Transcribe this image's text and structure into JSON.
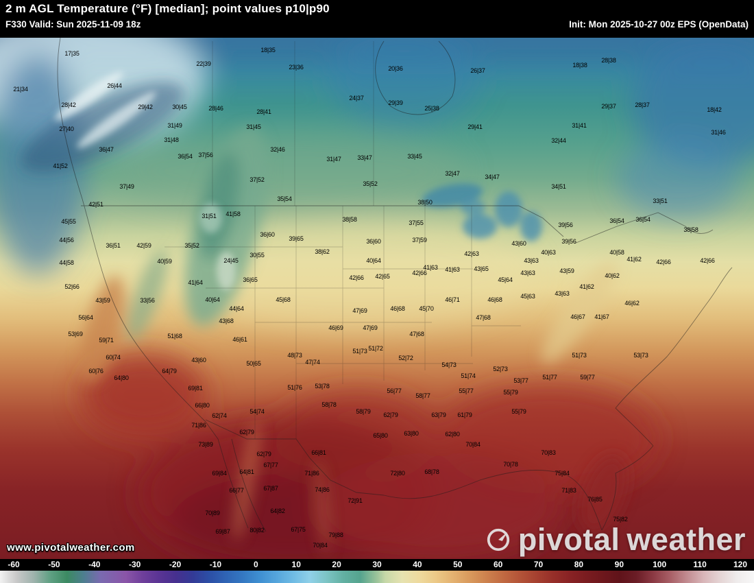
{
  "header": {
    "title": "2 m AGL Temperature (°F) [median]; point values p10|p90",
    "valid": "F330 Valid: Sun 2025-11-09 18z",
    "init": "Init: Mon 2025-10-27 00z EPS (OpenData)"
  },
  "watermark": "www.pivotalweather.com",
  "brand": {
    "name_left": "pivotal",
    "name_right": "weather"
  },
  "colorbar": {
    "min": -60,
    "max": 120,
    "ticks": [
      -60,
      -50,
      -40,
      -30,
      -20,
      -10,
      0,
      10,
      20,
      30,
      40,
      50,
      60,
      70,
      80,
      90,
      100,
      110,
      120
    ],
    "stops": [
      [
        -60,
        "#f2f2f2"
      ],
      [
        -56,
        "#c8c8c8"
      ],
      [
        -52,
        "#9fb3ad"
      ],
      [
        -48,
        "#5fa083"
      ],
      [
        -44,
        "#3c8a62"
      ],
      [
        -40,
        "#4d7e8f"
      ],
      [
        -36,
        "#7a6ab0"
      ],
      [
        -30,
        "#8a55a8"
      ],
      [
        -26,
        "#6f3f9b"
      ],
      [
        -22,
        "#5a3494"
      ],
      [
        -18,
        "#46308f"
      ],
      [
        -14,
        "#333a96"
      ],
      [
        -10,
        "#2c4fa6"
      ],
      [
        -6,
        "#2f64b5"
      ],
      [
        -2,
        "#3478c2"
      ],
      [
        2,
        "#3f8fd1"
      ],
      [
        6,
        "#55a5dc"
      ],
      [
        10,
        "#6fbbe4"
      ],
      [
        14,
        "#8fd0e8"
      ],
      [
        18,
        "#7cc4c4"
      ],
      [
        22,
        "#62b0a2"
      ],
      [
        26,
        "#55a48e"
      ],
      [
        30,
        "#9cc49a"
      ],
      [
        32,
        "#c6d8a8"
      ],
      [
        36,
        "#e6e2b0"
      ],
      [
        40,
        "#eeda9e"
      ],
      [
        44,
        "#ecc987"
      ],
      [
        48,
        "#e4b271"
      ],
      [
        52,
        "#d99a5d"
      ],
      [
        56,
        "#cd824e"
      ],
      [
        60,
        "#c16a42"
      ],
      [
        64,
        "#b45438"
      ],
      [
        68,
        "#a64130"
      ],
      [
        72,
        "#972f29"
      ],
      [
        76,
        "#882224"
      ],
      [
        80,
        "#7a1c20"
      ],
      [
        84,
        "#6d171c"
      ],
      [
        88,
        "#60131a"
      ],
      [
        92,
        "#6b1d26"
      ],
      [
        96,
        "#8c3a44"
      ],
      [
        100,
        "#a85f66"
      ],
      [
        104,
        "#c28b90"
      ],
      [
        108,
        "#d9b6b9"
      ],
      [
        112,
        "#e5d5d5"
      ],
      [
        116,
        "#efecec"
      ],
      [
        120,
        "#f7f7f7"
      ]
    ]
  },
  "map_points": [
    [
      105,
      78,
      "17|35"
    ],
    [
      297,
      93,
      "22|39"
    ],
    [
      391,
      73,
      "18|35"
    ],
    [
      432,
      98,
      "23|36"
    ],
    [
      577,
      100,
      "20|36"
    ],
    [
      697,
      103,
      "26|37"
    ],
    [
      846,
      95,
      "18|38"
    ],
    [
      888,
      88,
      "28|38"
    ],
    [
      30,
      130,
      "21|34"
    ],
    [
      167,
      125,
      "26|44"
    ],
    [
      520,
      143,
      "24|37"
    ],
    [
      577,
      150,
      "29|39"
    ],
    [
      630,
      158,
      "25|38"
    ],
    [
      888,
      155,
      "29|37"
    ],
    [
      937,
      153,
      "28|37"
    ],
    [
      1042,
      160,
      "18|42"
    ],
    [
      100,
      153,
      "28|42"
    ],
    [
      212,
      156,
      "29|42"
    ],
    [
      262,
      156,
      "30|45"
    ],
    [
      315,
      158,
      "28|46"
    ],
    [
      385,
      163,
      "28|41"
    ],
    [
      97,
      188,
      "27|40"
    ],
    [
      255,
      183,
      "31|49"
    ],
    [
      370,
      185,
      "31|45"
    ],
    [
      693,
      185,
      "29|41"
    ],
    [
      845,
      183,
      "31|41"
    ],
    [
      1048,
      193,
      "31|46"
    ],
    [
      250,
      204,
      "31|48"
    ],
    [
      815,
      205,
      "32|44"
    ],
    [
      155,
      218,
      "36|47"
    ],
    [
      405,
      218,
      "32|46"
    ],
    [
      270,
      228,
      "36|54"
    ],
    [
      300,
      226,
      "37|56"
    ],
    [
      487,
      232,
      "31|47"
    ],
    [
      532,
      230,
      "33|47"
    ],
    [
      605,
      228,
      "33|45"
    ],
    [
      660,
      253,
      "32|47"
    ],
    [
      718,
      258,
      "34|47"
    ],
    [
      88,
      242,
      "41|52"
    ],
    [
      185,
      272,
      "37|49"
    ],
    [
      375,
      262,
      "37|52"
    ],
    [
      540,
      268,
      "35|52"
    ],
    [
      815,
      272,
      "34|51"
    ],
    [
      140,
      298,
      "42|51"
    ],
    [
      415,
      290,
      "35|54"
    ],
    [
      620,
      295,
      "38|50"
    ],
    [
      963,
      293,
      "33|51"
    ],
    [
      100,
      323,
      "45|55"
    ],
    [
      305,
      315,
      "31|51"
    ],
    [
      340,
      312,
      "41|58"
    ],
    [
      510,
      320,
      "38|58"
    ],
    [
      607,
      325,
      "37|55"
    ],
    [
      825,
      328,
      "39|56"
    ],
    [
      900,
      322,
      "36|54"
    ],
    [
      938,
      320,
      "36|54"
    ],
    [
      1008,
      335,
      "38|58"
    ],
    [
      97,
      350,
      "44|56"
    ],
    [
      165,
      358,
      "36|51"
    ],
    [
      210,
      358,
      "42|59"
    ],
    [
      280,
      358,
      "35|52"
    ],
    [
      390,
      342,
      "36|60"
    ],
    [
      432,
      348,
      "39|65"
    ],
    [
      545,
      352,
      "36|60"
    ],
    [
      612,
      350,
      "37|59"
    ],
    [
      757,
      355,
      "43|60"
    ],
    [
      830,
      352,
      "39|56"
    ],
    [
      900,
      368,
      "40|58"
    ],
    [
      925,
      378,
      "41|62"
    ],
    [
      968,
      382,
      "42|66"
    ],
    [
      1032,
      380,
      "42|66"
    ],
    [
      97,
      383,
      "44|58"
    ],
    [
      240,
      381,
      "40|59"
    ],
    [
      337,
      380,
      "24|45"
    ],
    [
      375,
      372,
      "30|55"
    ],
    [
      470,
      367,
      "38|62"
    ],
    [
      545,
      380,
      "40|64"
    ],
    [
      628,
      390,
      "41|63"
    ],
    [
      688,
      370,
      "42|63"
    ],
    [
      702,
      392,
      "43|65"
    ],
    [
      775,
      380,
      "43|63"
    ],
    [
      800,
      368,
      "40|63"
    ],
    [
      893,
      402,
      "40|62"
    ],
    [
      105,
      418,
      "52|66"
    ],
    [
      285,
      412,
      "41|64"
    ],
    [
      365,
      408,
      "36|65"
    ],
    [
      520,
      405,
      "42|66"
    ],
    [
      558,
      403,
      "42|65"
    ],
    [
      612,
      398,
      "42|66"
    ],
    [
      660,
      393,
      "41|63"
    ],
    [
      737,
      408,
      "45|64"
    ],
    [
      770,
      398,
      "43|63"
    ],
    [
      827,
      395,
      "43|59"
    ],
    [
      856,
      418,
      "41|62"
    ],
    [
      150,
      438,
      "43|59"
    ],
    [
      215,
      438,
      "33|56"
    ],
    [
      310,
      437,
      "40|64"
    ],
    [
      345,
      450,
      "44|64"
    ],
    [
      413,
      437,
      "45|68"
    ],
    [
      525,
      453,
      "47|69"
    ],
    [
      580,
      450,
      "46|68"
    ],
    [
      622,
      450,
      "45|70"
    ],
    [
      660,
      437,
      "46|71"
    ],
    [
      722,
      437,
      "46|68"
    ],
    [
      770,
      432,
      "45|63"
    ],
    [
      820,
      428,
      "43|63"
    ],
    [
      922,
      442,
      "46|62"
    ],
    [
      843,
      462,
      "46|67"
    ],
    [
      878,
      462,
      "41|67"
    ],
    [
      125,
      463,
      "56|64"
    ],
    [
      110,
      487,
      "53|69"
    ],
    [
      155,
      496,
      "59|71"
    ],
    [
      255,
      490,
      "51|68"
    ],
    [
      330,
      468,
      "43|68"
    ],
    [
      350,
      495,
      "46|61"
    ],
    [
      490,
      478,
      "46|69"
    ],
    [
      540,
      478,
      "47|69"
    ],
    [
      705,
      463,
      "47|68"
    ],
    [
      608,
      487,
      "47|68"
    ],
    [
      165,
      521,
      "60|74"
    ],
    [
      140,
      541,
      "60|76"
    ],
    [
      177,
      551,
      "64|80"
    ],
    [
      247,
      541,
      "64|79"
    ],
    [
      290,
      525,
      "43|60"
    ],
    [
      370,
      530,
      "50|65"
    ],
    [
      430,
      518,
      "48|73"
    ],
    [
      456,
      528,
      "47|74"
    ],
    [
      525,
      512,
      "51|73"
    ],
    [
      548,
      508,
      "51|72"
    ],
    [
      592,
      522,
      "52|72"
    ],
    [
      655,
      532,
      "54|73"
    ],
    [
      683,
      548,
      "51|74"
    ],
    [
      730,
      538,
      "52|73"
    ],
    [
      845,
      518,
      "51|73"
    ],
    [
      935,
      518,
      "53|73"
    ],
    [
      760,
      555,
      "53|77"
    ],
    [
      802,
      550,
      "51|77"
    ],
    [
      857,
      550,
      "59|77"
    ],
    [
      285,
      566,
      "69|81"
    ],
    [
      295,
      591,
      "66|80"
    ],
    [
      320,
      606,
      "62|74"
    ],
    [
      375,
      600,
      "54|74"
    ],
    [
      430,
      565,
      "51|76"
    ],
    [
      470,
      563,
      "53|78"
    ],
    [
      575,
      570,
      "56|77"
    ],
    [
      617,
      577,
      "58|77"
    ],
    [
      680,
      570,
      "55|77"
    ],
    [
      745,
      572,
      "55|79"
    ],
    [
      480,
      590,
      "58|78"
    ],
    [
      530,
      600,
      "58|79"
    ],
    [
      570,
      605,
      "62|79"
    ],
    [
      640,
      605,
      "63|79"
    ],
    [
      678,
      605,
      "61|79"
    ],
    [
      757,
      600,
      "55|79"
    ],
    [
      290,
      620,
      "71|86"
    ],
    [
      360,
      630,
      "62|79"
    ],
    [
      555,
      635,
      "65|80"
    ],
    [
      600,
      632,
      "63|80"
    ],
    [
      660,
      633,
      "62|80"
    ],
    [
      300,
      648,
      "73|89"
    ],
    [
      385,
      662,
      "62|79"
    ],
    [
      465,
      660,
      "66|81"
    ],
    [
      690,
      648,
      "70|84"
    ],
    [
      800,
      660,
      "70|83"
    ],
    [
      745,
      677,
      "70|78"
    ],
    [
      820,
      690,
      "75|84"
    ],
    [
      320,
      690,
      "69|84"
    ],
    [
      360,
      688,
      "64|81"
    ],
    [
      395,
      678,
      "67|77"
    ],
    [
      455,
      690,
      "71|86"
    ],
    [
      580,
      690,
      "72|80"
    ],
    [
      630,
      688,
      "68|78"
    ],
    [
      345,
      715,
      "66|77"
    ],
    [
      395,
      712,
      "67|87"
    ],
    [
      470,
      714,
      "74|86"
    ],
    [
      518,
      730,
      "72|91"
    ],
    [
      830,
      715,
      "71|83"
    ],
    [
      868,
      728,
      "76|85"
    ],
    [
      405,
      745,
      "64|82"
    ],
    [
      310,
      748,
      "70|89"
    ],
    [
      905,
      757,
      "75|82"
    ],
    [
      375,
      773,
      "80|82"
    ],
    [
      435,
      772,
      "67|75"
    ],
    [
      325,
      775,
      "69|87"
    ],
    [
      490,
      780,
      "79|88"
    ],
    [
      467,
      795,
      "70|84"
    ]
  ]
}
